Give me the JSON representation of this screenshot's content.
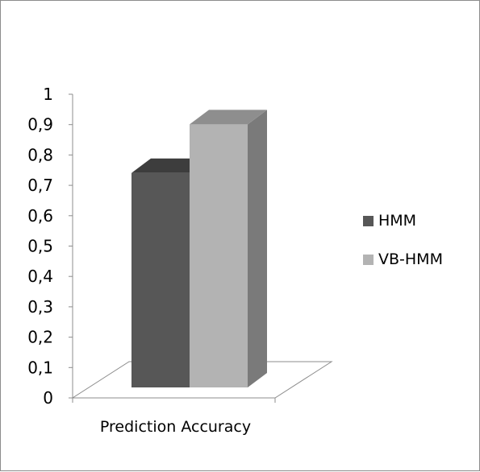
{
  "chart_data": {
    "type": "bar",
    "style": "3d-column",
    "categories": [
      "Prediction Accuracy"
    ],
    "series": [
      {
        "name": "HMM",
        "values": [
          0.75
        ],
        "color": "#575757"
      },
      {
        "name": "VB-HMM",
        "values": [
          0.92
        ],
        "color": "#b3b3b3"
      }
    ],
    "ylim": [
      0,
      1
    ],
    "yticks": [
      "0",
      "0,1",
      "0,2",
      "0,3",
      "0,4",
      "0,5",
      "0,6",
      "0,7",
      "0,8",
      "0,9",
      "1"
    ],
    "legend_position": "right",
    "grid": false
  }
}
